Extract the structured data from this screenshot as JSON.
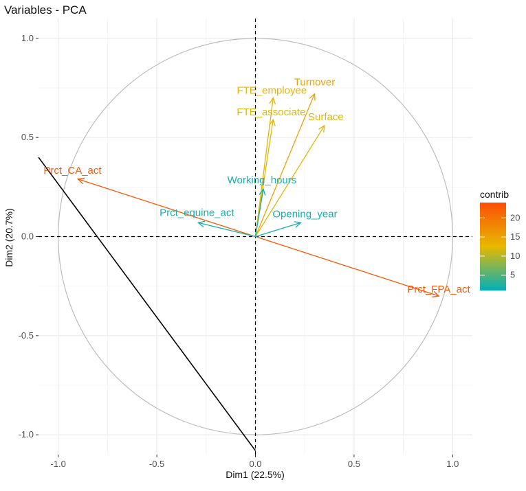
{
  "chart_data": {
    "type": "pca-variables",
    "title": "Variables - PCA",
    "xlabel": "Dim1 (22.5%)",
    "ylabel": "Dim2 (20.7%)",
    "xlim": [
      -1.1,
      1.1
    ],
    "ylim": [
      -1.1,
      1.1
    ],
    "xticks": [
      -1.0,
      -0.5,
      0.0,
      0.5,
      1.0
    ],
    "yticks": [
      -1.0,
      -0.5,
      0.0,
      0.5,
      1.0
    ],
    "xtick_labels": [
      "-1.0",
      "-0.5",
      "0.0",
      "0.5",
      "1.0"
    ],
    "ytick_labels": [
      "-1.0",
      "-0.5",
      "0.0",
      "0.5",
      "1.0"
    ],
    "grid": true,
    "unit_circle": true,
    "variables": [
      {
        "name": "Prct_CA_act",
        "x": -0.9,
        "y": 0.29,
        "contrib": 23
      },
      {
        "name": "Prct_FPA_act",
        "x": 0.93,
        "y": -0.3,
        "contrib": 23
      },
      {
        "name": "Turnover",
        "x": 0.3,
        "y": 0.72,
        "contrib": 15
      },
      {
        "name": "FTE_employee",
        "x": 0.09,
        "y": 0.7,
        "contrib": 13
      },
      {
        "name": "FTE_associate",
        "x": 0.09,
        "y": 0.59,
        "contrib": 12
      },
      {
        "name": "Surface",
        "x": 0.35,
        "y": 0.56,
        "contrib": 12
      },
      {
        "name": "Working_hours",
        "x": 0.04,
        "y": 0.24,
        "contrib": 2
      },
      {
        "name": "Prct_equine_act",
        "x": -0.29,
        "y": 0.07,
        "contrib": 2
      },
      {
        "name": "Opening_year",
        "x": 0.23,
        "y": 0.07,
        "contrib": 2
      }
    ],
    "annotation_line": {
      "from": [
        -1.1,
        0.4
      ],
      "to": [
        0.0,
        -1.08
      ]
    },
    "legend": {
      "title": "contrib",
      "placement": "right",
      "range": [
        1,
        24
      ],
      "ticks": [
        5,
        10,
        15,
        20
      ],
      "tick_labels": [
        "5",
        "10",
        "15",
        "20"
      ],
      "colors": {
        "low": "#00AFBB",
        "mid": "#E7B800",
        "high": "#FC4E07"
      }
    }
  }
}
